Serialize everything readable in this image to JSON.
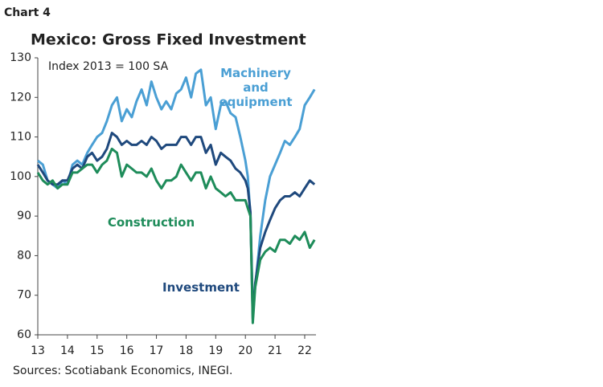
{
  "chart_data": {
    "type": "line",
    "label": "Chart 4",
    "title": "Mexico: Gross Fixed Investment",
    "annotation": "Index 2013 = 100 SA",
    "source": "Sources: Scotiabank Economics, INEGI.",
    "x": [
      13,
      13.17,
      13.33,
      13.5,
      13.67,
      13.83,
      14,
      14.17,
      14.33,
      14.5,
      14.67,
      14.83,
      15,
      15.17,
      15.33,
      15.5,
      15.67,
      15.83,
      16,
      16.17,
      16.33,
      16.5,
      16.67,
      16.83,
      17,
      17.17,
      17.33,
      17.5,
      17.67,
      17.83,
      18,
      18.17,
      18.33,
      18.5,
      18.67,
      18.83,
      19,
      19.17,
      19.33,
      19.5,
      19.67,
      19.83,
      20,
      20.08,
      20.17,
      20.25,
      20.33,
      20.5,
      20.67,
      20.83,
      21,
      21.17,
      21.33,
      21.5,
      21.67,
      21.83,
      22,
      22.17,
      22.33
    ],
    "series": [
      {
        "name": "Machinery and equipment",
        "color": "#4a9fd4",
        "values": [
          104,
          103,
          99,
          98,
          97,
          99,
          98,
          103,
          104,
          103,
          106,
          108,
          110,
          111,
          114,
          118,
          120,
          114,
          117,
          115,
          119,
          122,
          118,
          124,
          120,
          117,
          119,
          117,
          121,
          122,
          125,
          120,
          126,
          127,
          118,
          120,
          112,
          118,
          119,
          116,
          115,
          110,
          104,
          100,
          90,
          67,
          72,
          85,
          94,
          100,
          103,
          106,
          109,
          108,
          110,
          112,
          118,
          120,
          122
        ]
      },
      {
        "name": "Investment",
        "color": "#1f497d",
        "values": [
          103,
          101,
          99,
          98,
          98,
          99,
          99,
          102,
          103,
          102,
          105,
          106,
          104,
          105,
          107,
          111,
          110,
          108,
          109,
          108,
          108,
          109,
          108,
          110,
          109,
          107,
          108,
          108,
          108,
          110,
          110,
          108,
          110,
          110,
          106,
          108,
          103,
          106,
          105,
          104,
          102,
          101,
          99,
          97,
          91,
          64,
          73,
          82,
          86,
          89,
          92,
          94,
          95,
          95,
          96,
          95,
          97,
          99,
          98
        ]
      },
      {
        "name": "Construction",
        "color": "#1e8c5a",
        "values": [
          101,
          99,
          98,
          99,
          97,
          98,
          98,
          101,
          101,
          102,
          103,
          103,
          101,
          103,
          104,
          107,
          106,
          100,
          103,
          102,
          101,
          101,
          100,
          102,
          99,
          97,
          99,
          99,
          100,
          103,
          101,
          99,
          101,
          101,
          97,
          100,
          97,
          96,
          95,
          96,
          94,
          94,
          94,
          92,
          90,
          63,
          72,
          79,
          81,
          82,
          81,
          84,
          84,
          83,
          85,
          84,
          86,
          82,
          84
        ]
      }
    ],
    "xlim": [
      13,
      22.38
    ],
    "xticks": [
      13,
      14,
      15,
      16,
      17,
      18,
      19,
      20,
      21,
      22
    ],
    "ylim": [
      60,
      130
    ],
    "yticks": [
      60,
      70,
      80,
      90,
      100,
      110,
      120,
      130
    ],
    "grid": false
  }
}
